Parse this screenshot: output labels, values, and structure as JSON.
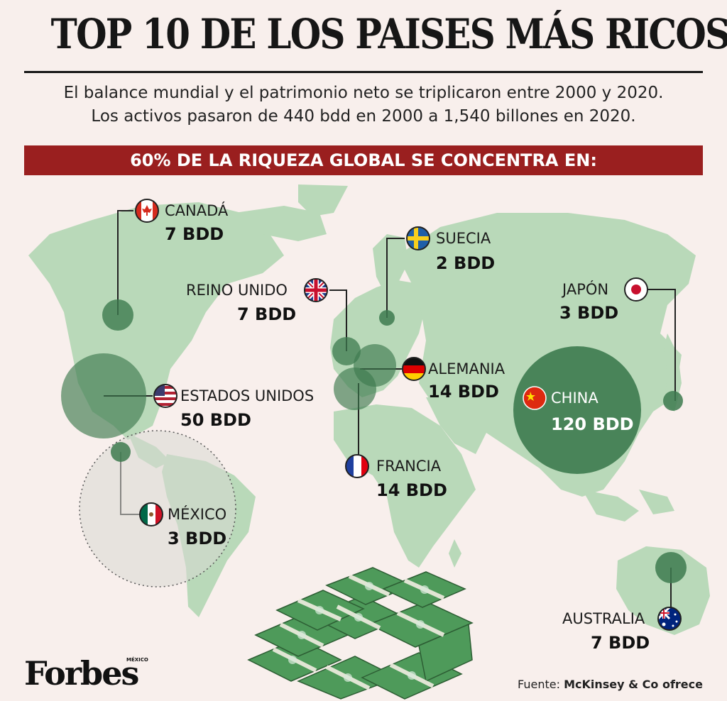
{
  "header": {
    "title": "TOP 10 DE LOS PAISES MÁS RICOS",
    "subtitle_line1": "El balance mundial y el patrimonio neto se triplicaron entre 2000 y 2020.",
    "subtitle_line2": "Los activos pasaron de 440 bdd en 2000 a 1,540 billones en 2020.",
    "banner": "60% DE LA RIQUEZA GLOBAL SE CONCENTRA EN:"
  },
  "countries": [
    {
      "id": "canada",
      "name": "CANADÁ",
      "value": "7 BDD",
      "amount": 7,
      "flag": "canada"
    },
    {
      "id": "suecia",
      "name": "SUECIA",
      "value": "2 BDD",
      "amount": 2,
      "flag": "sweden"
    },
    {
      "id": "reino-unido",
      "name": "REINO UNIDO",
      "value": "7 BDD",
      "amount": 7,
      "flag": "uk"
    },
    {
      "id": "japon",
      "name": "JAPÓN",
      "value": "3 BDD",
      "amount": 3,
      "flag": "japan"
    },
    {
      "id": "alemania",
      "name": "ALEMANIA",
      "value": "14 BDD",
      "amount": 14,
      "flag": "germany"
    },
    {
      "id": "estados-unidos",
      "name": "ESTADOS UNIDOS",
      "value": "50 BDD",
      "amount": 50,
      "flag": "usa"
    },
    {
      "id": "china",
      "name": "CHINA",
      "value": "120 BDD",
      "amount": 120,
      "flag": "china"
    },
    {
      "id": "francia",
      "name": "FRANCIA",
      "value": "14 BDD",
      "amount": 14,
      "flag": "france"
    },
    {
      "id": "mexico",
      "name": "MÉXICO",
      "value": "3 BDD",
      "amount": 3,
      "flag": "mexico"
    },
    {
      "id": "australia",
      "name": "AUSTRALIA",
      "value": "7 BDD",
      "amount": 7,
      "flag": "australia"
    }
  ],
  "colors": {
    "background": "#f8efec",
    "map": "#b9d9b9",
    "bubble": "#3d7a4f",
    "banner": "#9a1f1f"
  },
  "footer": {
    "logo": "Forbes",
    "logo_sub": "MÉXICO",
    "source_prefix": "Fuente:",
    "source_name": "McKinsey & Co ofrece"
  },
  "illustration": "money-stacks-icon"
}
